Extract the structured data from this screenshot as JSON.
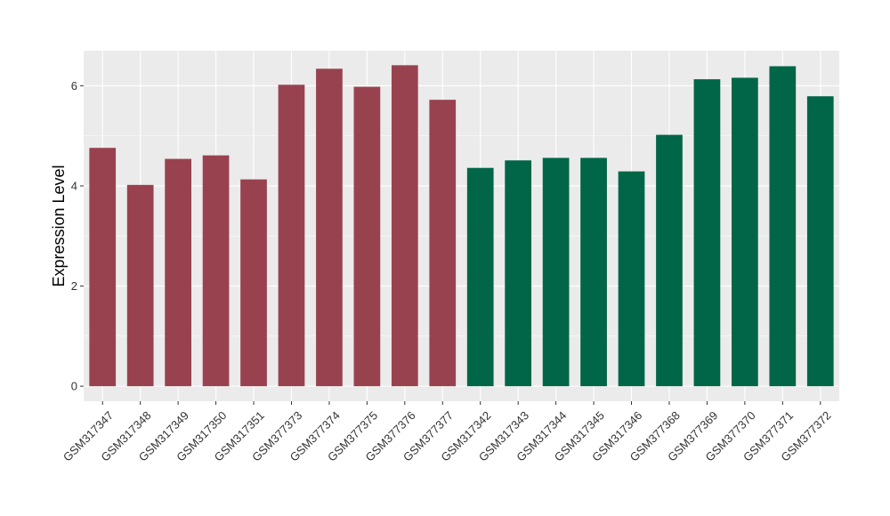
{
  "chart_data": {
    "type": "bar",
    "title": "",
    "xlabel": "",
    "ylabel": "Expression Level",
    "ylim": [
      -0.3,
      6.7
    ],
    "yticks": [
      0,
      2,
      4,
      6
    ],
    "grid": true,
    "legend": "none",
    "categories": [
      "GSM317347",
      "GSM317348",
      "GSM317349",
      "GSM317350",
      "GSM317351",
      "GSM377373",
      "GSM377374",
      "GSM377375",
      "GSM377376",
      "GSM377377",
      "GSM317342",
      "GSM317343",
      "GSM317344",
      "GSM317345",
      "GSM317346",
      "GSM377368",
      "GSM377369",
      "GSM377370",
      "GSM377371",
      "GSM377372"
    ],
    "values": [
      4.76,
      4.02,
      4.54,
      4.61,
      4.13,
      6.02,
      6.34,
      5.98,
      6.41,
      5.72,
      4.36,
      4.51,
      4.56,
      4.56,
      4.29,
      5.02,
      6.13,
      6.16,
      6.39,
      5.79
    ],
    "bar_colors": [
      "#99424f",
      "#99424f",
      "#99424f",
      "#99424f",
      "#99424f",
      "#99424f",
      "#99424f",
      "#99424f",
      "#99424f",
      "#99424f",
      "#006647",
      "#006647",
      "#006647",
      "#006647",
      "#006647",
      "#006647",
      "#006647",
      "#006647",
      "#006647",
      "#006647"
    ],
    "panel_background": "#ebebeb",
    "grid_color": "#ffffff"
  }
}
